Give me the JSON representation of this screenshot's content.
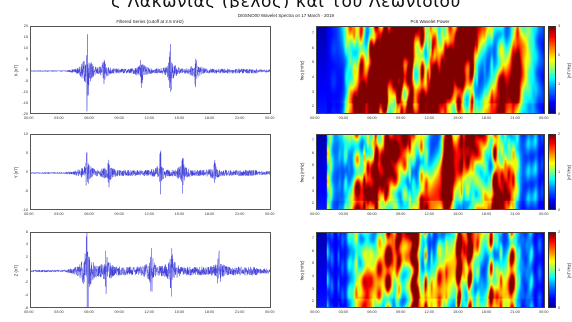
{
  "banner_text": "ς Λακωνίας (βέλος) και του Λεωνίδιου",
  "figure_title": "DI0SNO00 Wavelet Spectra on 17 March · 2019",
  "left_title": "Filtered Series (cutoff at 2.5 mHz)",
  "right_title": "Pc5 Wavelet Power",
  "time_ticks": [
    "00:00",
    "03:00",
    "06:00",
    "09:00",
    "12:00",
    "15:00",
    "18:00",
    "21:00",
    "00:00"
  ],
  "colorbar_label": "(nT²/Hz)",
  "colors": {
    "trace": "#2b2bd6",
    "frame": "#555555"
  },
  "chart_data": [
    {
      "type": "line",
      "title": "Filtered Series (cutoff at 2.5 mHz)",
      "ylabel": "X (nT)",
      "ylim": [
        -20,
        20
      ],
      "yticks": [
        20,
        15,
        10,
        5,
        0,
        -5,
        -10,
        -15,
        -20
      ],
      "xlim": [
        0,
        24
      ],
      "series": [
        {
          "bursts": [
            [
              5.6,
              14
            ],
            [
              7.3,
              5
            ],
            [
              11.0,
              5
            ],
            [
              13.9,
              9
            ],
            [
              16.4,
              5
            ]
          ],
          "base_amp": 1.1
        }
      ]
    },
    {
      "type": "line",
      "ylabel": "Y (nT)",
      "ylim": [
        -10,
        10
      ],
      "yticks": [
        10,
        5,
        0,
        -5,
        -10
      ],
      "xlim": [
        0,
        24
      ],
      "series": [
        {
          "bursts": [
            [
              5.6,
              4
            ],
            [
              7.7,
              3
            ],
            [
              12.9,
              4
            ],
            [
              15.1,
              3.5
            ],
            [
              18.3,
              2
            ]
          ],
          "base_amp": 0.8
        }
      ]
    },
    {
      "type": "line",
      "ylabel": "Z (nT)",
      "ylim": [
        -6,
        6
      ],
      "yticks": [
        6,
        4,
        2,
        0,
        -2,
        -4,
        -6
      ],
      "xlim": [
        0,
        24
      ],
      "series": [
        {
          "bursts": [
            [
              5.6,
              6
            ],
            [
              7.5,
              2.5
            ],
            [
              12.0,
              2.5
            ],
            [
              14.0,
              3
            ],
            [
              18.7,
              2
            ]
          ],
          "base_amp": 0.7
        }
      ]
    },
    {
      "type": "heatmap",
      "title": "Pc5 Wavelet Power",
      "ylabel": "freq (mHz)",
      "yticks": [
        "7",
        "6",
        "5",
        "4",
        "3",
        "2"
      ],
      "colorbar_label": "(nT²/Hz)",
      "colorbar_ticks": [
        "3",
        "2",
        "1",
        "0"
      ],
      "intensity": 0.85,
      "hot_band": [
        4,
        21
      ]
    },
    {
      "type": "heatmap",
      "ylabel": "freq (mHz)",
      "yticks": [
        "7",
        "6",
        "5",
        "4",
        "3",
        "2"
      ],
      "colorbar_label": "(nT²/Hz)",
      "colorbar_ticks": [
        "2",
        "1",
        "0"
      ],
      "intensity": 0.72,
      "hot_band": [
        4,
        20
      ]
    },
    {
      "type": "heatmap",
      "ylabel": "freq (mHz)",
      "yticks": [
        "7",
        "6",
        "5",
        "4",
        "3",
        "2"
      ],
      "colorbar_label": "(nT²/Hz)",
      "colorbar_ticks": [
        "2",
        "1",
        "0"
      ],
      "intensity": 0.55,
      "hot_band": [
        5,
        20
      ]
    }
  ]
}
